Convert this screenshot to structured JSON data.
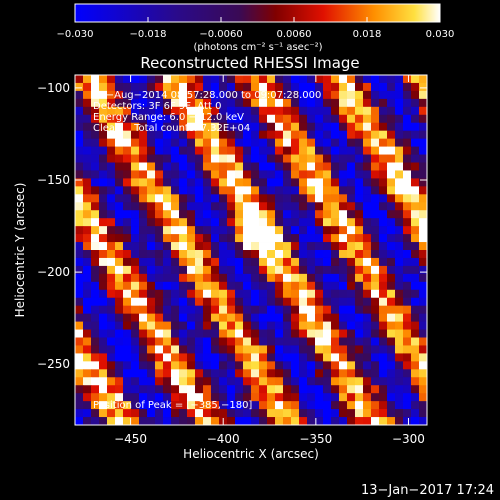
{
  "chart_data": {
    "type": "heatmap",
    "title": "Reconstructed RHESSI Image",
    "xlabel": "Heliocentric X (arcsec)",
    "ylabel": "Heliocentric Y (arcsec)",
    "xlim": [
      -480,
      -290
    ],
    "ylim": [
      -283,
      -93
    ],
    "x_ticks": [
      -450,
      -400,
      -350,
      -300
    ],
    "x_tick_labels": [
      "−450",
      "−400",
      "−350",
      "−300"
    ],
    "y_ticks": [
      -100,
      -150,
      -200,
      -250
    ],
    "y_tick_labels": [
      "−100",
      "−150",
      "−200",
      "−250"
    ],
    "colorbar": {
      "min": -0.03,
      "max": 0.03,
      "ticks": [
        -0.03,
        -0.018,
        -0.006,
        0.006,
        0.018,
        0.03
      ],
      "tick_labels": [
        "−0.030",
        "−0.018",
        "−0.0060",
        "0.0060",
        "0.018",
        "0.030"
      ],
      "unit_label": "(photons cm⁻² s⁻¹ asec⁻²)"
    },
    "annotations": [
      "17−Aug−2014 08:57:28.000 to 09:07:28.000",
      "Detectors: 3F 6F 9F, Att 0",
      "Energy Range: 6.0 − 12.0 keV",
      "Clean    Total counts: 7.32E+04"
    ],
    "peak_label": "Position of Peak = [−385,−180]",
    "peak": [
      -385,
      -180
    ],
    "grid": false
  },
  "footer": {
    "timestamp": "13−Jan−2017 17:24"
  }
}
